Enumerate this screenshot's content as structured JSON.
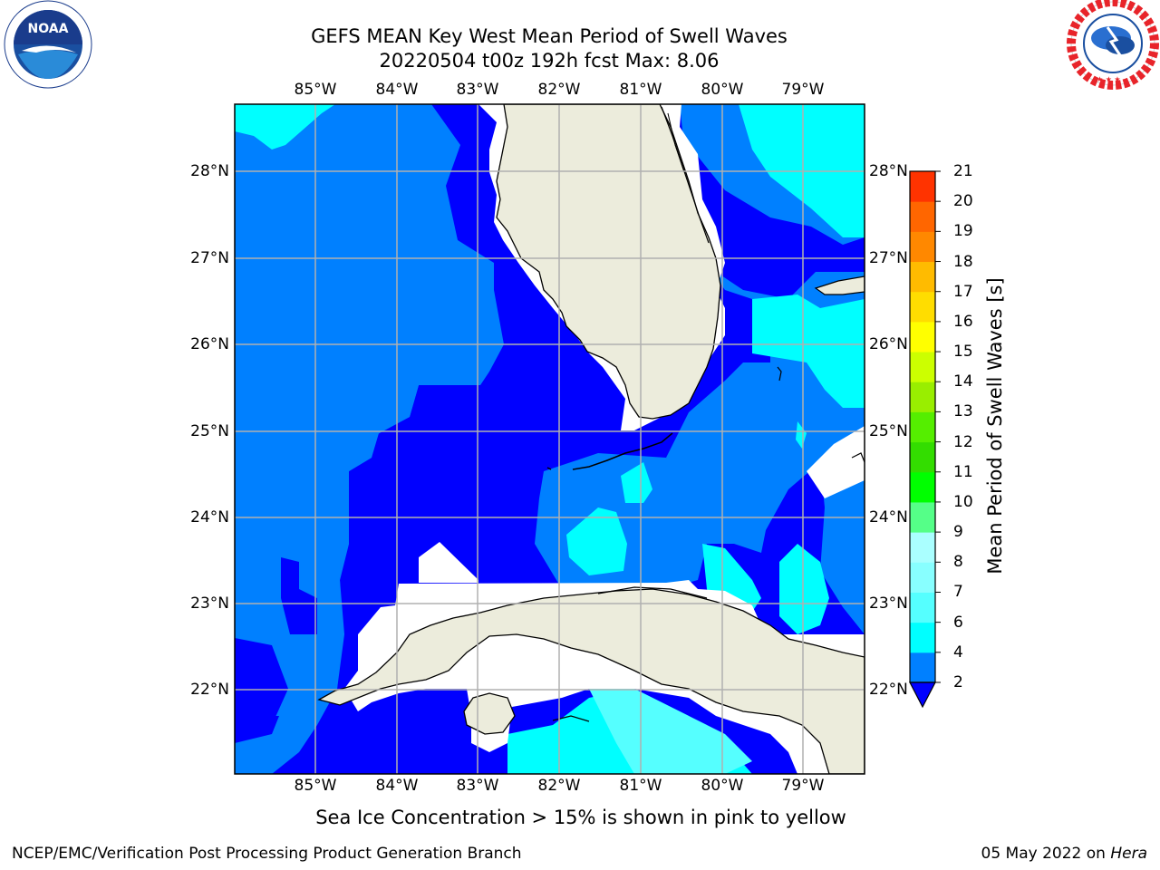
{
  "header": {
    "title_line1": "GEFS MEAN Key West Mean Period of Swell Waves",
    "title_line2": "20220504 t00z 192h fcst   Max: 8.06"
  },
  "logos": {
    "left": "NOAA",
    "left_ring_text": "NATIONAL OCEANIC AND ATMOSPHERIC ADMINISTRATION · U.S. DEPARTMENT OF COMMERCE",
    "right_ring_text": "NATIONAL WEATHER SERVICE"
  },
  "map": {
    "lon_labels": [
      "85°W",
      "84°W",
      "83°W",
      "82°W",
      "81°W",
      "80°W",
      "79°W"
    ],
    "lat_labels": [
      "28°N",
      "27°N",
      "26°N",
      "25°N",
      "24°N",
      "23°N",
      "22°N"
    ],
    "colors": {
      "deep_blue": "#0000ff",
      "mid_blue": "#0080ff",
      "cyan": "#00ffff",
      "light_cyan": "#55ffff",
      "land": "#ececdc",
      "gridline": "#b0b0b0"
    }
  },
  "colorbar": {
    "title": "Mean Period of Swell Waves [s]",
    "levels": [
      "2",
      "4",
      "6",
      "7",
      "8",
      "9",
      "10",
      "11",
      "12",
      "13",
      "14",
      "15",
      "16",
      "17",
      "18",
      "19",
      "20",
      "21"
    ],
    "colors": [
      "#0080ff",
      "#00ffff",
      "#55ffff",
      "#88ffff",
      "#aaffff",
      "#55ff88",
      "#00ff00",
      "#33dd00",
      "#55ee00",
      "#99ee00",
      "#ccff00",
      "#ffff00",
      "#ffdd00",
      "#ffbb00",
      "#ff8800",
      "#ff6600",
      "#ff3300",
      "#ff0000"
    ],
    "under_color": "#0000ff"
  },
  "footer": {
    "note": "Sea Ice Concentration > 15% is shown in pink to yellow",
    "left": "NCEP/EMC/Verification Post Processing Product Generation Branch",
    "right_date": "05 May 2022 on ",
    "right_machine": "Hera"
  }
}
